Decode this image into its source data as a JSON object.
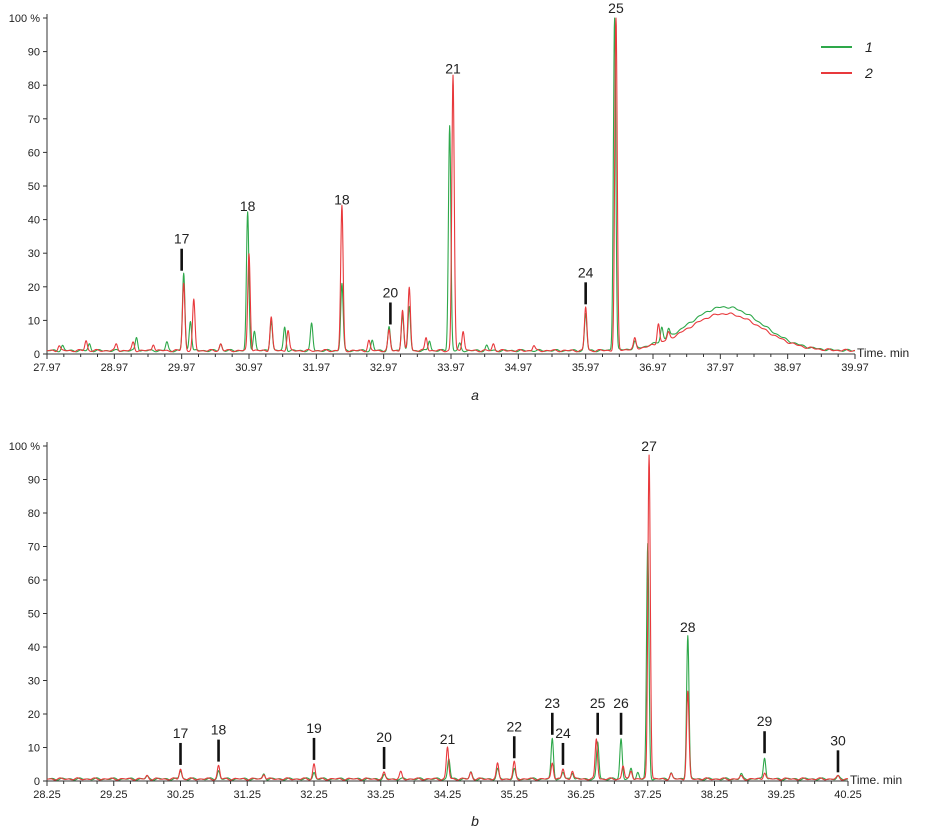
{
  "chart_data": [
    {
      "type": "line",
      "panel_label": "a",
      "xlabel": "Time. min",
      "ylabel": "",
      "xlim": [
        27.97,
        39.97
      ],
      "ylim": [
        0,
        100
      ],
      "x_ticks": [
        27.97,
        28.97,
        29.97,
        30.97,
        31.97,
        32.97,
        33.97,
        34.97,
        35.97,
        36.97,
        37.97,
        38.97,
        39.97
      ],
      "x_tick_labels": [
        "27.97",
        "28.97",
        "29.97",
        "30.97",
        "31.97",
        "32.97",
        "33.97",
        "34.97",
        "35.97",
        "36.97",
        "37.97",
        "38.97",
        "39.97"
      ],
      "y_ticks": [
        0,
        10,
        20,
        30,
        40,
        50,
        60,
        70,
        80,
        90,
        100
      ],
      "y_tick_labels": [
        "0",
        "10",
        "20",
        "30",
        "40",
        "50",
        "60",
        "70",
        "80",
        "90",
        "100 %"
      ],
      "legend": {
        "position": "top-right",
        "entries": [
          {
            "label": "1",
            "color": "#2ea84a"
          },
          {
            "label": "2",
            "color": "#e8393c"
          }
        ]
      },
      "series": [
        {
          "name": "1",
          "color": "#2ea84a",
          "baseline": 1,
          "hump": {
            "center": 38.04,
            "height": 13,
            "width": 0.55
          },
          "peaks": [
            [
              28.2,
              1.5
            ],
            [
              28.6,
              2
            ],
            [
              29.3,
              4
            ],
            [
              29.75,
              2.5
            ],
            [
              30.0,
              23
            ],
            [
              30.1,
              9
            ],
            [
              30.55,
              2
            ],
            [
              30.95,
              41
            ],
            [
              31.05,
              6
            ],
            [
              31.3,
              9
            ],
            [
              31.5,
              7
            ],
            [
              31.9,
              8
            ],
            [
              32.35,
              20
            ],
            [
              32.8,
              3
            ],
            [
              33.05,
              7
            ],
            [
              33.25,
              11
            ],
            [
              33.35,
              13
            ],
            [
              33.65,
              3
            ],
            [
              33.95,
              67
            ],
            [
              34.1,
              2
            ],
            [
              34.5,
              1.5
            ],
            [
              35.97,
              11
            ],
            [
              36.4,
              100
            ],
            [
              36.7,
              2
            ],
            [
              37.1,
              4
            ],
            [
              37.2,
              2.5
            ]
          ]
        },
        {
          "name": "2",
          "color": "#e8393c",
          "baseline": 1,
          "hump": {
            "center": 38.04,
            "height": 11,
            "width": 0.55
          },
          "peaks": [
            [
              28.15,
              1.5
            ],
            [
              28.55,
              3
            ],
            [
              29.0,
              2
            ],
            [
              29.25,
              2.5
            ],
            [
              29.55,
              2
            ],
            [
              30.0,
              20
            ],
            [
              30.15,
              15
            ],
            [
              30.55,
              2
            ],
            [
              30.97,
              29
            ],
            [
              31.3,
              10
            ],
            [
              31.55,
              6
            ],
            [
              32.35,
              43
            ],
            [
              32.75,
              3
            ],
            [
              33.05,
              6
            ],
            [
              33.25,
              12
            ],
            [
              33.35,
              19
            ],
            [
              33.6,
              4
            ],
            [
              34.0,
              82
            ],
            [
              34.15,
              6
            ],
            [
              34.6,
              2
            ],
            [
              35.2,
              1.5
            ],
            [
              35.97,
              13
            ],
            [
              36.42,
              100
            ],
            [
              36.7,
              3
            ],
            [
              37.05,
              6
            ],
            [
              37.2,
              2
            ]
          ]
        }
      ],
      "peak_labels": [
        {
          "label": "17",
          "x": 29.97,
          "y": 23,
          "tick": true
        },
        {
          "label": "18",
          "x": 30.95,
          "y": 41,
          "tick": false
        },
        {
          "label": "18",
          "x": 32.35,
          "y": 43,
          "tick": false
        },
        {
          "label": "20",
          "x": 33.07,
          "y": 7,
          "tick": true
        },
        {
          "label": "21",
          "x": 34.0,
          "y": 82,
          "tick": false
        },
        {
          "label": "24",
          "x": 35.97,
          "y": 13,
          "tick": true
        },
        {
          "label": "25",
          "x": 36.42,
          "y": 100,
          "tick": false
        }
      ]
    },
    {
      "type": "line",
      "panel_label": "b",
      "xlabel": "Time. min",
      "ylabel": "",
      "xlim": [
        28.25,
        40.25
      ],
      "ylim": [
        0,
        100
      ],
      "x_ticks": [
        28.25,
        29.25,
        30.25,
        31.25,
        32.25,
        33.25,
        34.25,
        35.25,
        36.25,
        37.25,
        38.25,
        39.25,
        40.25
      ],
      "x_tick_labels": [
        "28.25",
        "29.25",
        "30.25",
        "31.25",
        "32.25",
        "33.25",
        "34.25",
        "35.25",
        "36.25",
        "37.25",
        "38.25",
        "39.25",
        "40.25"
      ],
      "y_ticks": [
        0,
        10,
        20,
        30,
        40,
        50,
        60,
        70,
        80,
        90,
        100
      ],
      "y_tick_labels": [
        "0",
        "10",
        "20",
        "30",
        "40",
        "50",
        "60",
        "70",
        "80",
        "90",
        "100 %"
      ],
      "series": [
        {
          "name": "1",
          "color": "#2ea84a",
          "baseline": 0.6,
          "peaks": [
            [
              29.75,
              0.8
            ],
            [
              30.25,
              2.5
            ],
            [
              30.82,
              2.5
            ],
            [
              31.5,
              1.5
            ],
            [
              32.25,
              2
            ],
            [
              33.3,
              1.2
            ],
            [
              34.27,
              6
            ],
            [
              34.6,
              2
            ],
            [
              35.0,
              3
            ],
            [
              35.25,
              3
            ],
            [
              35.82,
              12
            ],
            [
              35.98,
              2
            ],
            [
              36.12,
              2
            ],
            [
              36.5,
              11
            ],
            [
              36.85,
              12
            ],
            [
              37.0,
              3
            ],
            [
              37.1,
              2
            ],
            [
              37.25,
              70
            ],
            [
              37.6,
              2
            ],
            [
              37.85,
              43
            ],
            [
              38.65,
              1.5
            ],
            [
              39.0,
              6.5
            ],
            [
              40.1,
              0.8
            ]
          ]
        },
        {
          "name": "2",
          "color": "#e8393c",
          "baseline": 0.6,
          "peaks": [
            [
              29.75,
              1
            ],
            [
              30.25,
              3
            ],
            [
              30.82,
              4
            ],
            [
              31.5,
              1.5
            ],
            [
              32.25,
              4.5
            ],
            [
              33.3,
              1.8
            ],
            [
              33.55,
              2
            ],
            [
              34.25,
              9.5
            ],
            [
              34.6,
              2
            ],
            [
              35.0,
              4.5
            ],
            [
              35.25,
              5
            ],
            [
              35.82,
              5
            ],
            [
              35.98,
              3
            ],
            [
              36.12,
              2.5
            ],
            [
              36.48,
              12
            ],
            [
              36.88,
              4
            ],
            [
              37.0,
              2.5
            ],
            [
              37.27,
              97
            ],
            [
              37.6,
              1.5
            ],
            [
              37.85,
              26
            ],
            [
              38.65,
              0.8
            ],
            [
              39.0,
              2
            ],
            [
              40.1,
              0.8
            ]
          ]
        }
      ],
      "peak_labels": [
        {
          "label": "17",
          "x": 30.25,
          "y": 3,
          "tick": true
        },
        {
          "label": "18",
          "x": 30.82,
          "y": 4,
          "tick": true
        },
        {
          "label": "19",
          "x": 32.25,
          "y": 4.5,
          "tick": true
        },
        {
          "label": "20",
          "x": 33.3,
          "y": 1.8,
          "tick": true
        },
        {
          "label": "21",
          "x": 34.25,
          "y": 9.5,
          "tick": false
        },
        {
          "label": "22",
          "x": 35.25,
          "y": 5,
          "tick": true
        },
        {
          "label": "23",
          "x": 35.82,
          "y": 12,
          "tick": true
        },
        {
          "label": "24",
          "x": 35.98,
          "y": 3,
          "tick": true
        },
        {
          "label": "25",
          "x": 36.5,
          "y": 12,
          "tick": true
        },
        {
          "label": "26",
          "x": 36.85,
          "y": 12,
          "tick": true
        },
        {
          "label": "27",
          "x": 37.27,
          "y": 97,
          "tick": false
        },
        {
          "label": "28",
          "x": 37.85,
          "y": 43,
          "tick": false
        },
        {
          "label": "29",
          "x": 39.0,
          "y": 6.5,
          "tick": true
        },
        {
          "label": "30",
          "x": 40.1,
          "y": 0.8,
          "tick": true
        }
      ]
    }
  ]
}
